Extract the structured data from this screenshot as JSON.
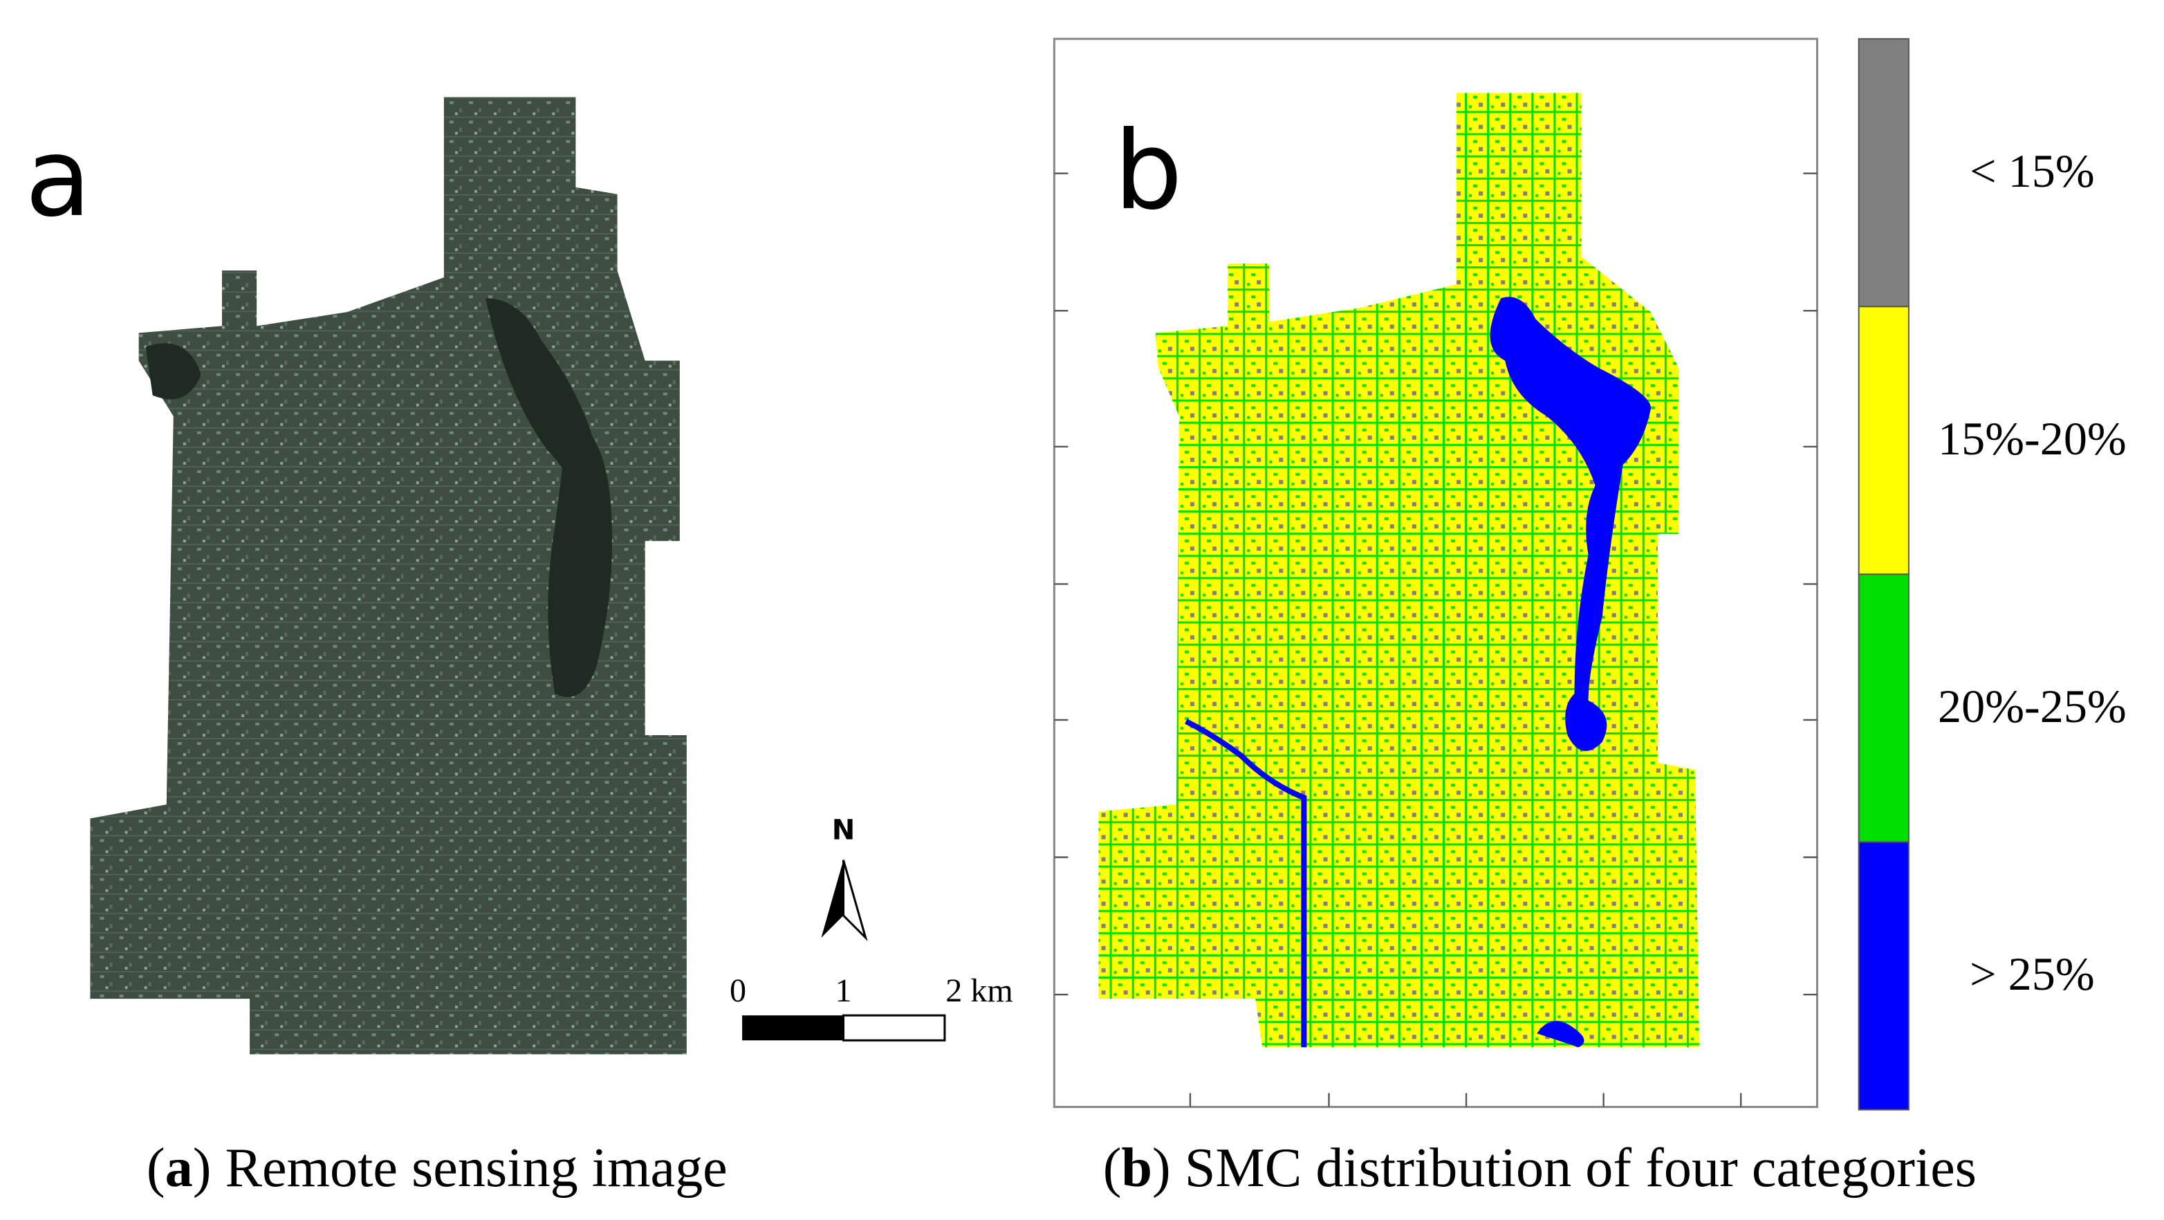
{
  "panels": [
    {
      "label": "a",
      "caption_parts": [
        "(",
        "a",
        ") Remote sensing image"
      ],
      "north": "N",
      "scale_bar": [
        "0",
        "1",
        "2 km"
      ]
    },
    {
      "label": "b",
      "caption_parts": [
        "(",
        "b",
        ") SMC distribution of four categories"
      ],
      "legend": [
        {
          "label": "< 15%",
          "color": "#808080"
        },
        {
          "label": "15%-20%",
          "color": "#ffff00"
        },
        {
          "label": "20%-25%",
          "color": "#00e000"
        },
        {
          "label": "> 25%",
          "color": "#0000ff"
        }
      ]
    }
  ]
}
